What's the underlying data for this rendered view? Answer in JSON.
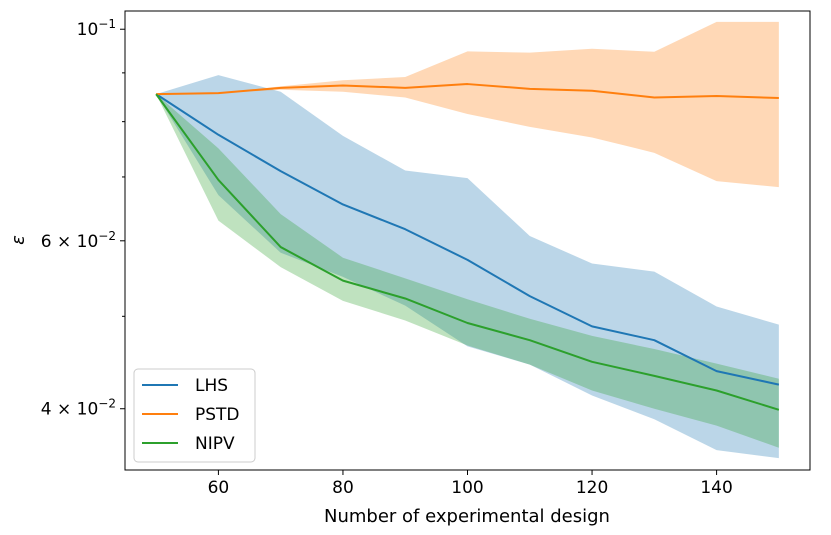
{
  "chart_data": {
    "type": "line",
    "title": "",
    "xlabel": "Number of experimental design",
    "ylabel": "ε",
    "yscale": "log",
    "xlim": [
      45,
      155
    ],
    "ylim": [
      0.0345,
      0.1045
    ],
    "x_ticks": [
      60,
      80,
      100,
      120,
      140
    ],
    "y_ticks": [
      {
        "value": 0.1,
        "base": "10",
        "exp": "−1",
        "coef": ""
      },
      {
        "value": 0.06,
        "base": "10",
        "exp": "−2",
        "coef": "6 × "
      },
      {
        "value": 0.04,
        "base": "10",
        "exp": "−2",
        "coef": "4 × "
      }
    ],
    "y_minor_ticks": [
      0.09,
      0.08,
      0.07,
      0.05
    ],
    "x": [
      50,
      60,
      70,
      80,
      90,
      100,
      110,
      120,
      130,
      140,
      150
    ],
    "series": [
      {
        "name": "LHS",
        "color": "#1f77b4",
        "mean": [
          0.0855,
          0.0775,
          0.071,
          0.0655,
          0.0617,
          0.0573,
          0.0525,
          0.0488,
          0.0472,
          0.0438,
          0.0424
        ],
        "upper": [
          0.0855,
          0.0895,
          0.086,
          0.0773,
          0.0711,
          0.0698,
          0.0607,
          0.0568,
          0.0557,
          0.0512,
          0.049
        ],
        "lower": [
          0.0855,
          0.067,
          0.0583,
          0.055,
          0.0513,
          0.0465,
          0.0445,
          0.0413,
          0.039,
          0.0362,
          0.0355
        ]
      },
      {
        "name": "PSTD",
        "color": "#ff7f0e",
        "mean": [
          0.0855,
          0.0857,
          0.0868,
          0.0873,
          0.0868,
          0.0876,
          0.0866,
          0.0862,
          0.0848,
          0.0851,
          0.0847
        ],
        "upper": [
          0.0855,
          0.0857,
          0.0871,
          0.0884,
          0.0891,
          0.0948,
          0.0945,
          0.0954,
          0.0947,
          0.1018,
          0.1018
        ],
        "lower": [
          0.0855,
          0.0857,
          0.0864,
          0.086,
          0.0848,
          0.0815,
          0.079,
          0.077,
          0.0742,
          0.0693,
          0.0683
        ]
      },
      {
        "name": "NIPV",
        "color": "#2ca02c",
        "mean": [
          0.0855,
          0.0695,
          0.0591,
          0.0545,
          0.0522,
          0.0492,
          0.0472,
          0.0448,
          0.0433,
          0.0418,
          0.0399
        ],
        "upper": [
          0.0855,
          0.075,
          0.064,
          0.0576,
          0.0548,
          0.0521,
          0.0497,
          0.0477,
          0.0462,
          0.0446,
          0.043
        ],
        "lower": [
          0.0855,
          0.063,
          0.0563,
          0.0519,
          0.0495,
          0.0466,
          0.0445,
          0.0418,
          0.04,
          0.0384,
          0.0364
        ]
      }
    ],
    "fill_alpha": 0.3,
    "grid": false,
    "legend_position": "lower-left"
  }
}
